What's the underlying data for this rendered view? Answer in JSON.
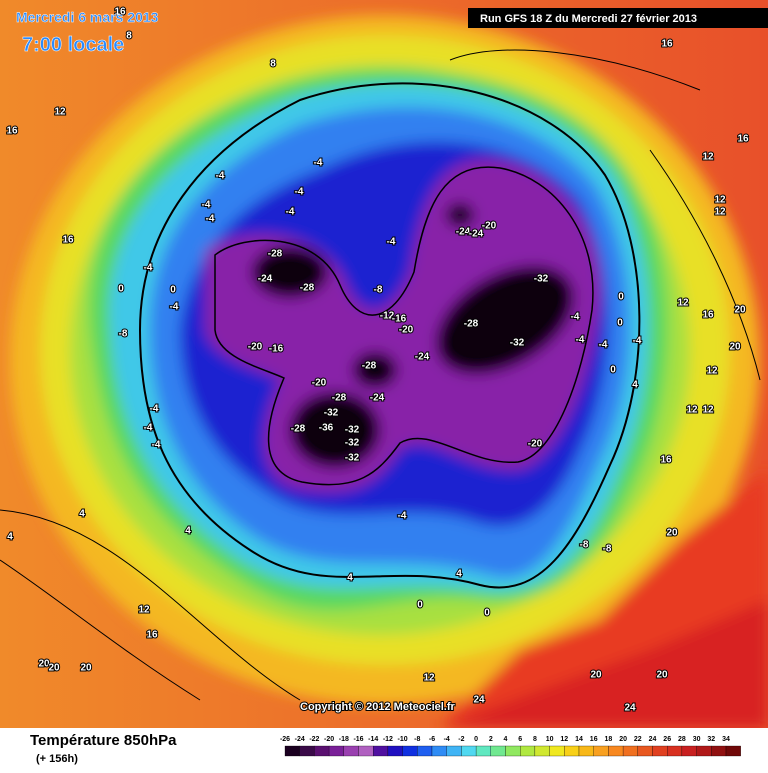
{
  "header": {
    "date": "Mercredi 6 mars 2013",
    "time": "7:00 locale",
    "run": "Run GFS 18 Z du Mercredi 27 février 2013"
  },
  "copyright": "Copyright © 2012 Meteociel.fr",
  "footer": {
    "title": "Température 850hPa",
    "lead": "(+ 156h)"
  },
  "legend": {
    "ticks": [
      -26,
      -24,
      -22,
      -20,
      -18,
      -16,
      -14,
      -12,
      -10,
      -8,
      -6,
      -4,
      -2,
      0,
      2,
      4,
      6,
      8,
      10,
      12,
      14,
      16,
      18,
      20,
      22,
      24,
      26,
      28,
      30,
      32,
      34
    ],
    "colors": [
      "#1a0020",
      "#3a0a48",
      "#5a1070",
      "#7a2098",
      "#9a40b0",
      "#b060c0",
      "#5010a0",
      "#2010c0",
      "#1030e0",
      "#1f5ff0",
      "#2f8cf5",
      "#40b4f5",
      "#50d8f0",
      "#60e8c0",
      "#70e890",
      "#90e860",
      "#b0e840",
      "#d0e830",
      "#f0e820",
      "#f8d018",
      "#f8b818",
      "#f8a020",
      "#f88820",
      "#f07020",
      "#e85820",
      "#e04020",
      "#d83020",
      "#c82020",
      "#b01818",
      "#901010",
      "#700808"
    ]
  },
  "map_labels": [
    -28,
    -24,
    -28,
    -20,
    -16,
    -20,
    -28,
    -32,
    -36,
    -28,
    -32,
    -32,
    -32,
    -28,
    -24,
    -24,
    -28,
    -32,
    -32,
    -20,
    -24,
    -24,
    -20,
    -12,
    -16,
    -8,
    -4,
    -4,
    -4,
    -4,
    -4,
    -4,
    -4,
    -4,
    0,
    0,
    -8,
    -4,
    -4,
    -4,
    -4,
    -20,
    -8,
    -8,
    -4,
    4,
    4,
    0,
    0,
    12,
    16,
    20,
    20,
    20,
    12,
    24,
    24,
    20,
    20,
    20,
    20,
    20,
    12,
    16,
    12,
    12,
    12,
    16,
    12,
    16,
    16,
    16,
    16,
    12,
    12,
    12,
    4,
    4,
    4,
    -4,
    0,
    0,
    -4,
    0,
    4,
    -4,
    -4,
    16,
    8,
    8
  ]
}
